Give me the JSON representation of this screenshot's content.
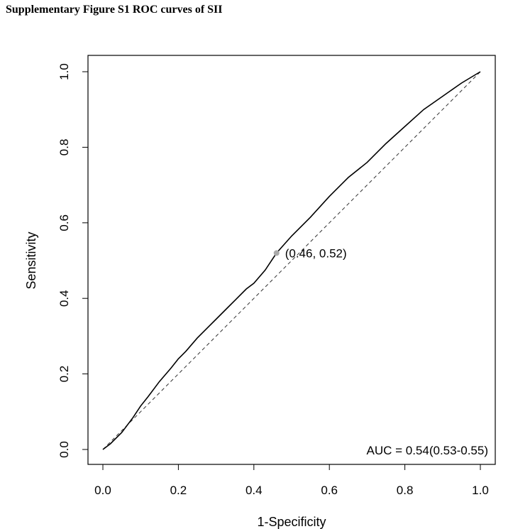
{
  "figure_title": "Supplementary Figure S1 ROC curves of SII",
  "chart_data": {
    "type": "line",
    "title": "Supplementary Figure S1 ROC curves of SII",
    "xlabel": "1-Specificity",
    "ylabel": "Sensitivity",
    "xlim": [
      0,
      1
    ],
    "ylim": [
      0,
      1
    ],
    "x_ticks": [
      0,
      0.2,
      0.4,
      0.6,
      0.8,
      1
    ],
    "x_tick_labels": [
      "0.0",
      "0.2",
      "0.4",
      "0.6",
      "0.8",
      "1.0"
    ],
    "y_ticks": [
      0,
      0.2,
      0.4,
      0.6,
      0.8,
      1
    ],
    "y_tick_labels": [
      "0.0",
      "0.2",
      "0.4",
      "0.6",
      "0.8",
      "1.0"
    ],
    "grid": false,
    "series": [
      {
        "name": "ROC curve",
        "x": [
          0,
          0.02,
          0.05,
          0.08,
          0.1,
          0.12,
          0.15,
          0.18,
          0.2,
          0.22,
          0.25,
          0.28,
          0.3,
          0.33,
          0.35,
          0.38,
          0.4,
          0.43,
          0.46,
          0.5,
          0.55,
          0.6,
          0.65,
          0.7,
          0.75,
          0.8,
          0.85,
          0.9,
          0.95,
          1
        ],
        "y": [
          0,
          0.015,
          0.045,
          0.085,
          0.115,
          0.14,
          0.18,
          0.215,
          0.24,
          0.26,
          0.295,
          0.325,
          0.345,
          0.375,
          0.395,
          0.425,
          0.44,
          0.475,
          0.52,
          0.565,
          0.615,
          0.67,
          0.72,
          0.76,
          0.81,
          0.855,
          0.9,
          0.935,
          0.97,
          1
        ]
      },
      {
        "name": "Reference line",
        "style": "dashed",
        "x": [
          0,
          1
        ],
        "y": [
          0,
          1
        ]
      }
    ],
    "highlight_point": {
      "x": 0.46,
      "y": 0.52,
      "label": "(0.46, 0.52)"
    },
    "annotation": "AUC = 0.54(0.53-0.55)"
  }
}
